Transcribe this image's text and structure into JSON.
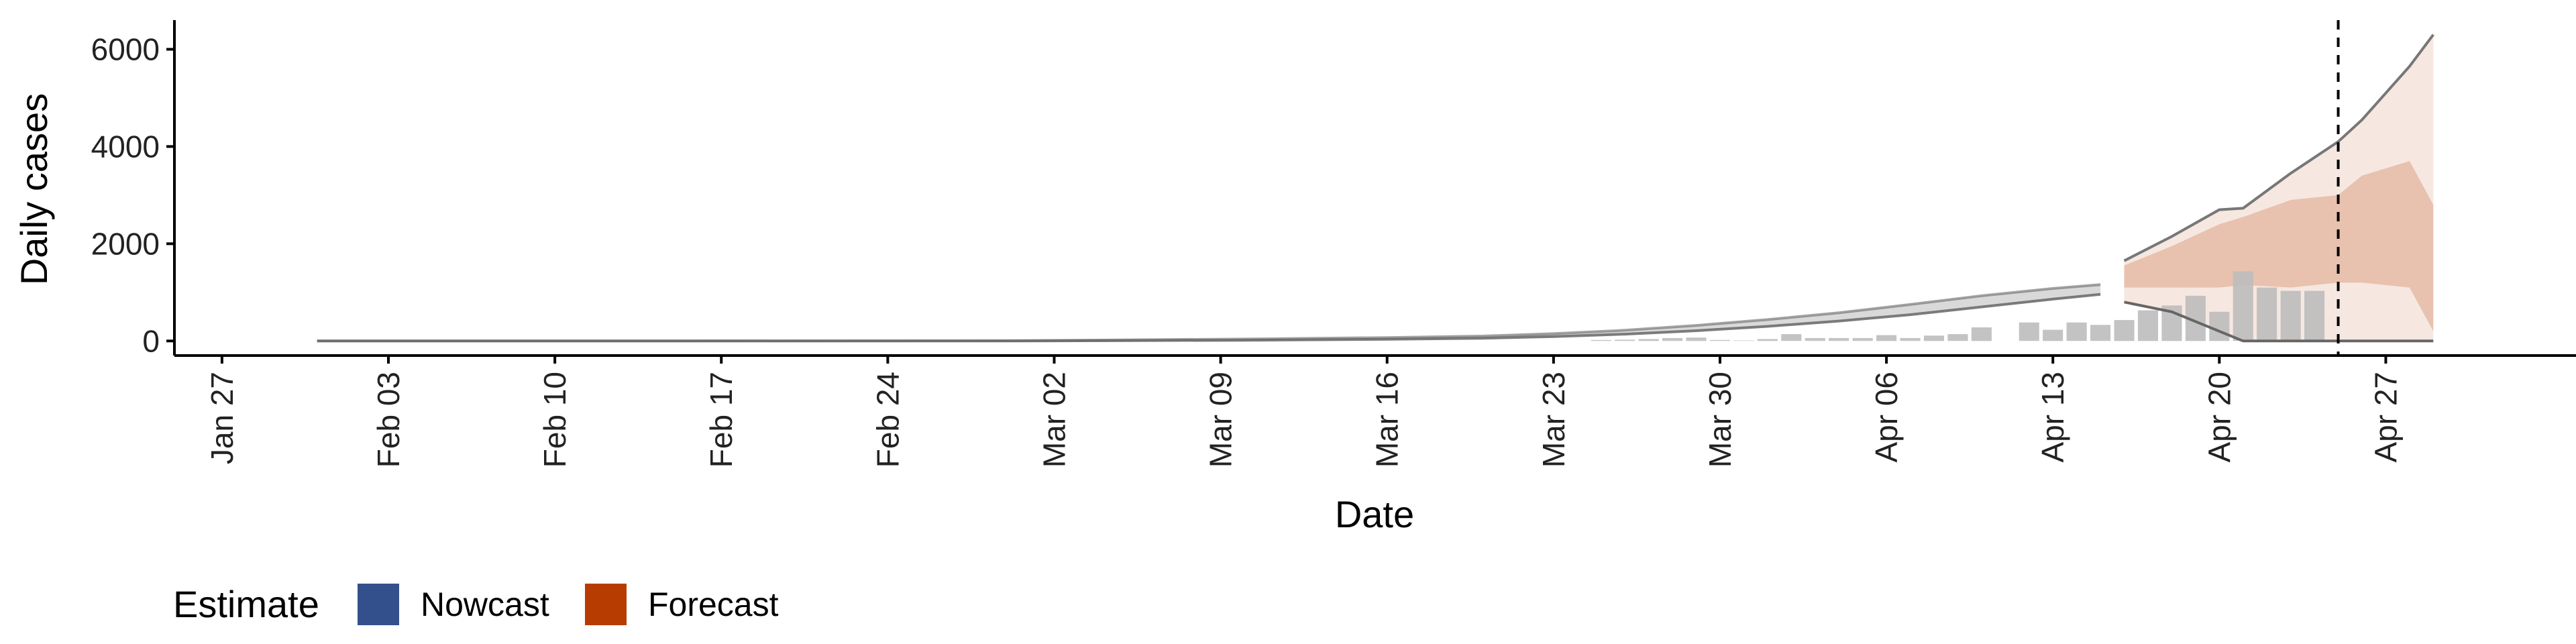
{
  "chart_data": {
    "type": "area",
    "xlabel": "Date",
    "ylabel": "Daily cases",
    "x_axis": {
      "type": "date",
      "range": [
        "2020-01-25",
        "2020-05-05"
      ],
      "ticks": [
        {
          "date": "2020-01-27",
          "label": "Jan 27"
        },
        {
          "date": "2020-02-03",
          "label": "Feb 03"
        },
        {
          "date": "2020-02-10",
          "label": "Feb 10"
        },
        {
          "date": "2020-02-17",
          "label": "Feb 17"
        },
        {
          "date": "2020-02-24",
          "label": "Feb 24"
        },
        {
          "date": "2020-03-02",
          "label": "Mar 02"
        },
        {
          "date": "2020-03-09",
          "label": "Mar 09"
        },
        {
          "date": "2020-03-16",
          "label": "Mar 16"
        },
        {
          "date": "2020-03-23",
          "label": "Mar 23"
        },
        {
          "date": "2020-03-30",
          "label": "Mar 30"
        },
        {
          "date": "2020-04-06",
          "label": "Apr 06"
        },
        {
          "date": "2020-04-13",
          "label": "Apr 13"
        },
        {
          "date": "2020-04-20",
          "label": "Apr 20"
        },
        {
          "date": "2020-04-27",
          "label": "Apr 27"
        }
      ]
    },
    "y_axis": {
      "range": [
        -300,
        6600
      ],
      "ticks": [
        0,
        2000,
        4000,
        6000
      ]
    },
    "grid": false,
    "vline": {
      "date": "2020-04-25",
      "style": "dashed"
    },
    "observed_cases": {
      "color": "#bdbdbd",
      "dates": [
        "2020-03-25",
        "2020-03-26",
        "2020-03-27",
        "2020-03-28",
        "2020-03-29",
        "2020-03-30",
        "2020-03-31",
        "2020-04-01",
        "2020-04-02",
        "2020-04-03",
        "2020-04-04",
        "2020-04-05",
        "2020-04-06",
        "2020-04-07",
        "2020-04-08",
        "2020-04-09",
        "2020-04-10",
        "2020-04-11",
        "2020-04-12",
        "2020-04-13",
        "2020-04-14",
        "2020-04-15",
        "2020-04-16",
        "2020-04-17",
        "2020-04-18",
        "2020-04-19",
        "2020-04-20",
        "2020-04-21",
        "2020-04-22",
        "2020-04-23",
        "2020-04-24"
      ],
      "values": [
        20,
        25,
        40,
        60,
        70,
        20,
        10,
        40,
        140,
        60,
        60,
        60,
        120,
        60,
        110,
        140,
        280,
        0,
        380,
        230,
        380,
        330,
        430,
        630,
        730,
        930,
        600,
        1430,
        1100,
        1030,
        1030
      ]
    },
    "estimate_band": {
      "color": "#666666",
      "dates": [
        "2020-01-31",
        "2020-02-15",
        "2020-02-29",
        "2020-03-10",
        "2020-03-16",
        "2020-03-20",
        "2020-03-23",
        "2020-03-26",
        "2020-03-29",
        "2020-04-01",
        "2020-04-04",
        "2020-04-07",
        "2020-04-10",
        "2020-04-13",
        "2020-04-15"
      ],
      "lower": [
        0,
        0,
        0,
        15,
        35,
        55,
        90,
        140,
        210,
        300,
        410,
        540,
        700,
        860,
        960
      ],
      "upper": [
        0,
        0,
        5,
        40,
        70,
        100,
        150,
        220,
        320,
        440,
        580,
        750,
        930,
        1080,
        1160
      ]
    },
    "forecast": {
      "color": "#b73c02",
      "dates": [
        "2020-04-16",
        "2020-04-18",
        "2020-04-20",
        "2020-04-21",
        "2020-04-23",
        "2020-04-25",
        "2020-04-26",
        "2020-04-28",
        "2020-04-29"
      ],
      "outer_lower": [
        800,
        600,
        200,
        0,
        0,
        0,
        0,
        0,
        0
      ],
      "outer_upper": [
        1650,
        2150,
        2700,
        2730,
        3450,
        4100,
        4550,
        5650,
        6300
      ],
      "inner_lower": [
        1100,
        1100,
        1100,
        1150,
        1100,
        1200,
        1200,
        1100,
        200
      ],
      "inner_upper": [
        1550,
        1950,
        2400,
        2550,
        2900,
        3000,
        3400,
        3700,
        2800
      ]
    },
    "legend": {
      "title": "Estimate",
      "position": "bottom",
      "entries": [
        {
          "label": "Nowcast",
          "color": "#33508c"
        },
        {
          "label": "Forecast",
          "color": "#b73c02"
        }
      ]
    }
  }
}
